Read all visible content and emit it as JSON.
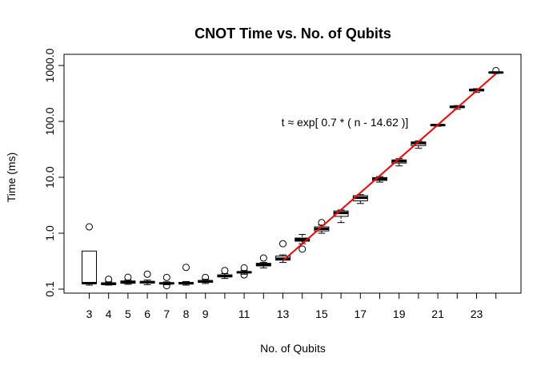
{
  "chart_data": {
    "type": "boxplot",
    "title": "CNOT Time vs. No. of Qubits",
    "xlabel": "No. of Qubits",
    "ylabel": "Time (ms)",
    "y_scale": "log",
    "ylim": [
      0.1,
      1000
    ],
    "y_ticks": [
      "0.1",
      "1.0",
      "10.0",
      "100.0",
      "1000.0"
    ],
    "x_tick_labels": [
      "3",
      "4",
      "5",
      "6",
      "7",
      "8",
      "9",
      "11",
      "13",
      "15",
      "17",
      "19",
      "21",
      "23"
    ],
    "annotation": "t ≈ exp[ 0.7  * ( n - 14.62 )]",
    "fit_color": "#ff0000",
    "fit_line": {
      "a": 0.7,
      "n0": 14.62,
      "n_min": 13,
      "n_max": 24
    },
    "boxes": [
      {
        "n": 3,
        "min": 0.118,
        "q1": 0.125,
        "median": 0.128,
        "q3": 0.48,
        "max": 0.48,
        "outliers": [
          1.3
        ]
      },
      {
        "n": 4,
        "min": 0.118,
        "q1": 0.12,
        "median": 0.125,
        "q3": 0.13,
        "max": 0.135,
        "outliers": [
          0.15
        ]
      },
      {
        "n": 5,
        "min": 0.122,
        "q1": 0.127,
        "median": 0.133,
        "q3": 0.14,
        "max": 0.145,
        "outliers": [
          0.163
        ]
      },
      {
        "n": 6,
        "min": 0.12,
        "q1": 0.128,
        "median": 0.133,
        "q3": 0.138,
        "max": 0.145,
        "outliers": [
          0.185
        ]
      },
      {
        "n": 7,
        "min": 0.12,
        "q1": 0.124,
        "median": 0.127,
        "q3": 0.13,
        "max": 0.135,
        "outliers": [
          0.115,
          0.162
        ]
      },
      {
        "n": 8,
        "min": 0.118,
        "q1": 0.123,
        "median": 0.128,
        "q3": 0.132,
        "max": 0.137,
        "outliers": [
          0.245
        ]
      },
      {
        "n": 9,
        "min": 0.126,
        "q1": 0.132,
        "median": 0.138,
        "q3": 0.143,
        "max": 0.15,
        "outliers": [
          0.162
        ]
      },
      {
        "n": 10,
        "min": 0.155,
        "q1": 0.165,
        "median": 0.172,
        "q3": 0.18,
        "max": 0.19,
        "outliers": [
          0.215
        ]
      },
      {
        "n": 11,
        "min": 0.185,
        "q1": 0.195,
        "median": 0.2,
        "q3": 0.205,
        "max": 0.215,
        "outliers": [
          0.24,
          0.18
        ]
      },
      {
        "n": 12,
        "min": 0.24,
        "q1": 0.26,
        "median": 0.275,
        "q3": 0.29,
        "max": 0.3,
        "outliers": [
          0.36
        ]
      },
      {
        "n": 13,
        "min": 0.3,
        "q1": 0.33,
        "median": 0.35,
        "q3": 0.39,
        "max": 0.41,
        "outliers": [
          0.65
        ]
      },
      {
        "n": 14,
        "min": 0.65,
        "q1": 0.72,
        "median": 0.77,
        "q3": 0.82,
        "max": 0.95,
        "outliers": [
          0.52
        ]
      },
      {
        "n": 15,
        "min": 1.0,
        "q1": 1.1,
        "median": 1.2,
        "q3": 1.3,
        "max": 1.4,
        "outliers": [
          1.55
        ]
      },
      {
        "n": 16,
        "min": 1.55,
        "q1": 2.0,
        "median": 2.3,
        "q3": 2.5,
        "max": 2.6,
        "outliers": []
      },
      {
        "n": 17,
        "min": 3.4,
        "q1": 3.8,
        "median": 4.3,
        "q3": 4.7,
        "max": 4.9,
        "outliers": []
      },
      {
        "n": 18,
        "min": 8.2,
        "q1": 8.8,
        "median": 9.4,
        "q3": 9.9,
        "max": 10.3,
        "outliers": []
      },
      {
        "n": 19,
        "min": 16.0,
        "q1": 18.0,
        "median": 19.5,
        "q3": 20.5,
        "max": 21.5,
        "outliers": []
      },
      {
        "n": 20,
        "min": 33.0,
        "q1": 37.0,
        "median": 41.0,
        "q3": 43.0,
        "max": 45.0,
        "outliers": []
      },
      {
        "n": 21,
        "min": 82.0,
        "q1": 84.0,
        "median": 86.0,
        "q3": 88.0,
        "max": 89.0,
        "outliers": []
      },
      {
        "n": 22,
        "min": 165.0,
        "q1": 176.0,
        "median": 182.0,
        "q3": 188.0,
        "max": 192.0,
        "outliers": []
      },
      {
        "n": 23,
        "min": 330.0,
        "q1": 350.0,
        "median": 365.0,
        "q3": 375.0,
        "max": 385.0,
        "outliers": []
      },
      {
        "n": 24,
        "min": 720.0,
        "q1": 740.0,
        "median": 750.0,
        "q3": 760.0,
        "max": 770.0,
        "outliers": [
          810.0
        ]
      }
    ]
  }
}
